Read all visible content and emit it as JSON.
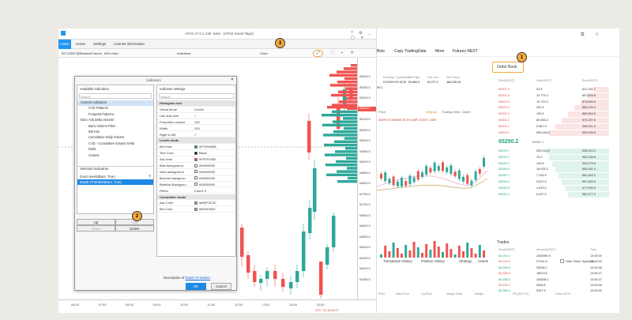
{
  "window": {
    "title": "ATAS v7.0.1.248 -beta - [ATAS Smart Tape]",
    "controls": "? ⚙ _ ▢ ✕"
  },
  "menu": {
    "items": [
      "Learn",
      "Home",
      "Settings",
      "License information"
    ]
  },
  "chart_toolbar": {
    "instrument": "BTCUSDT@BinanceFutures",
    "timeframe": "M15 chart",
    "indicators_label": "Indicators",
    "chart_label": "Chart"
  },
  "price_axis": [
    "65300.0",
    "65250.0",
    "65200.0",
    "65150.0",
    "65100.0",
    "65050.0",
    "65000.0",
    "64950.0",
    "64900.0",
    "64850.0",
    "64800.0",
    "64750.0",
    "64700.0",
    "64650.0",
    "64600.0",
    "64550.0",
    "64500.0",
    "64450.0",
    "64400.0",
    "64350.0"
  ],
  "current_price_tag": "65290.2",
  "time_axis": [
    "06:00",
    "07:00",
    "08:00",
    "09:00",
    "10:00",
    "11:00",
    "12:00",
    "13:00",
    "14:00",
    "15:00"
  ],
  "axis_footer": "UTC +3 | 18.05.17",
  "dialog": {
    "title": "Indicators",
    "available_header": "Available indicators",
    "settings_header": "Indicator settings",
    "search_placeholder": "Search",
    "tree": [
      "Custom Indicators",
      "CVD Patterns",
      "Footprint Patterns",
      "Bid x Ask,Delta,Volume",
      "Bar's Volume Filter",
      "Bid Ask",
      "Cumulative Daily Volume",
      "CVD - Cumulative Volume Delta",
      "Delta",
      "Volume"
    ],
    "selected_header": "Selected indicators",
    "selected": [
      "Zoom levels(Bars, True)",
      "Depth Of Market(Bars, True)"
    ],
    "settings": [
      {
        "k": "Histogram size",
        "v": "",
        "section": true
      },
      {
        "k": "Visual Mode",
        "v": "Levels"
      },
      {
        "k": "Use auto size",
        "v": "✓"
      },
      {
        "k": "Proportion volume",
        "v": "100"
      },
      {
        "k": "Width",
        "v": "200"
      },
      {
        "k": "Right to left",
        "v": "✓"
      },
      {
        "k": "Levels mode",
        "v": "",
        "section": true
      },
      {
        "k": "Bid rows",
        "v": "#FF2EA89A",
        "c": "#2ea89a"
      },
      {
        "k": "Text Color",
        "v": "Black",
        "c": "#000000"
      },
      {
        "k": "Ask rows",
        "v": "#FFEF5350",
        "c": "#ef5350"
      },
      {
        "k": "Bids background",
        "v": "#00000000",
        "c": "#ffffff"
      },
      {
        "k": "Asks background",
        "v": "#00000000",
        "c": "#ffffff"
      },
      {
        "k": "Best bid backgrou...",
        "v": "#00000000",
        "c": "#ffffff"
      },
      {
        "k": "BestAsk Backgrou...",
        "v": "#00000000",
        "c": "#ffffff"
      },
      {
        "k": "Filters",
        "v": "Count: 0"
      },
      {
        "k": "Cumulative mode",
        "v": "",
        "section": true
      },
      {
        "k": "Ask Color",
        "v": "#80EF3C3C",
        "c": "#ef8a8a"
      },
      {
        "k": "Bid Color",
        "v": "#801878A3",
        "c": "#88b9cf"
      }
    ],
    "btn_up": "Up",
    "btn_add": "Add",
    "btn_down": "Down",
    "btn_delete": "Delete",
    "description": "Description of",
    "description_link": "Depth Of Market",
    "ok": "OK",
    "cancel": "Cancel"
  },
  "badges": [
    "1",
    "2",
    "3"
  ],
  "binance": {
    "nav": [
      "Bots",
      "Copy Trading",
      "Data",
      "More",
      "Futures NEXT"
    ],
    "stats": [
      {
        "k": "Funding / Countdown",
        "v": "0.0100%  02:15:30"
      },
      {
        "k": "24h High",
        "v": "65,666.0"
      },
      {
        "k": "24h Low",
        "v": "64,271.2"
      },
      {
        "k": "24h Volum",
        "v": "466,235.18"
      }
    ],
    "price_small": "36.1",
    "chart_tabs": [
      "Price",
      "Original",
      "Trading View",
      "Depth"
    ],
    "change_line": "65299.5 CHANGE 35.9% AMPLITUDE 1.38%",
    "order_book_tab": "Order Book",
    "ob_headers": [
      "Price(USDT)",
      "Size(USDT)",
      "Sum(USDT)"
    ],
    "asks": [
      [
        "65301.5",
        "51.5",
        "811,194.7"
      ],
      [
        "65300.6",
        "10.779.3",
        "897,605.8"
      ],
      [
        "65300.5",
        "10.729.3",
        "874,899.6"
      ],
      [
        "65300.4",
        "391.9",
        "866,196.3"
      ],
      [
        "65300.3",
        "192.6",
        "865,364.5"
      ],
      [
        "65300.2",
        "82,066.2",
        "679,297.6"
      ],
      [
        "65300.1",
        "5,467.9",
        "596,241.0"
      ],
      [
        "65300.0",
        "593,036.5",
        "593,036.5"
      ]
    ],
    "mid_price": "65290.2",
    "mid_sub": "≈65287.1",
    "bids": [
      [
        "65290.1",
        "539,024.2",
        "539,024.2"
      ],
      [
        "65290.0",
        "19.2",
        "539,168.6"
      ],
      [
        "65289.9",
        "126.6",
        "542,075.5"
      ],
      [
        "65289.8",
        "16.005.3",
        "555,081.4"
      ],
      [
        "65289.7",
        "7,109.9",
        "562,492.2"
      ],
      [
        "65289.6",
        "5,327.5",
        "567,659.5"
      ],
      [
        "65289.5",
        "4,523.9",
        "577,990.9"
      ],
      [
        "65289.4",
        "5,327.5",
        "582,977.4"
      ]
    ],
    "trades_title": "Trades",
    "trade_headers": [
      "Price(USDT)",
      "Amount(USDT)",
      "Time"
    ],
    "trades": [
      [
        "65,290.1",
        "2639990.9",
        "13:49:29"
      ],
      [
        "65,290.0",
        "97151.9",
        "13:49:29"
      ],
      [
        "65,286.5",
        "25936.1",
        "13:49:28"
      ],
      [
        "65,286.5",
        "18819.5",
        "13:49:27"
      ],
      [
        "65,288.0",
        "200838.1",
        "13:49:27"
      ],
      [
        "65,290.1",
        "5936.6",
        "13:49:26"
      ],
      [
        "65,286.5",
        "5327.5",
        "13:49:25"
      ]
    ],
    "bottom_tabs": [
      "Transaction History",
      "Position History",
      "Strategy",
      "Assets"
    ],
    "hide_other": "Hide Other Symbols",
    "bottom_cols": [
      "Price",
      "Mark Price",
      "Liq.Price",
      "Margin Ratio",
      "Margin",
      "PNL(ROI %)",
      "Close All Po"
    ]
  },
  "colors": {
    "bid": "#2ea89a",
    "ask": "#ef5350",
    "accent": "#2196f3",
    "badge": "#f4a93c"
  }
}
